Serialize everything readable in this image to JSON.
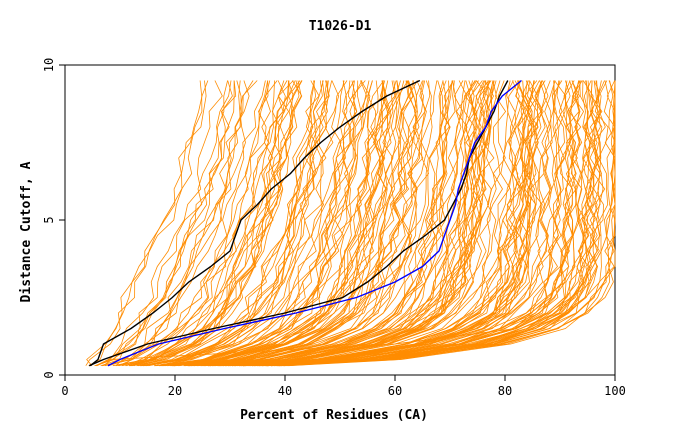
{
  "chart_data": {
    "type": "line",
    "title": "T1026-D1",
    "xlabel": "Percent of Residues (CA)",
    "ylabel": "Distance Cutoff, A",
    "xlim": [
      0,
      100
    ],
    "ylim": [
      0,
      10
    ],
    "x_ticks": [
      0,
      20,
      40,
      60,
      80,
      100
    ],
    "y_ticks": [
      0,
      5,
      10
    ],
    "grid": false,
    "legend": "none",
    "y_values": [
      0.3,
      0.5,
      1.0,
      1.5,
      2.0,
      2.5,
      3.0,
      3.5,
      4.0,
      4.5,
      5.0,
      5.5,
      6.0,
      6.5,
      7.0,
      7.5,
      8.0,
      8.5,
      9.0,
      9.5
    ],
    "series": [
      {
        "color": "#000000",
        "x": [
          4.6,
          6.0,
          7.0,
          12.0,
          16.0,
          19.5,
          22.5,
          26.5,
          30.0,
          31.0,
          32.0,
          35.0,
          37.5,
          41.0,
          43.5,
          46.5,
          50.0,
          54.0,
          58.5,
          64.5
        ]
      },
      {
        "color": "#000000",
        "x": [
          4.4,
          7.0,
          15.0,
          27.0,
          40.0,
          50.5,
          55.0,
          58.5,
          61.5,
          65.5,
          69.0,
          70.5,
          72.0,
          73.0,
          73.5,
          75.0,
          76.5,
          78.0,
          79.0,
          80.5
        ]
      },
      {
        "color": "#0000ff",
        "x": [
          7.8,
          10.0,
          17.0,
          29.0,
          42.0,
          53.0,
          60.0,
          65.0,
          68.0,
          69.0,
          70.0,
          71.0,
          71.5,
          72.5,
          73.5,
          74.5,
          76.5,
          77.5,
          79.5,
          83.0
        ]
      },
      {
        "color": "#ff8c00",
        "x": [
          7.0,
          8.5,
          60.0,
          82.0,
          88.0,
          92.0,
          94.5,
          96.0,
          97.5,
          98.5,
          99.0,
          99.3,
          99.5,
          99.6,
          99.7,
          99.8,
          99.9,
          100,
          100,
          100
        ]
      },
      {
        "color": "#ff8c00",
        "x": [
          40.0,
          45.0,
          78.0,
          88.0,
          93.0,
          96.0,
          98.0,
          99.0,
          99.5,
          99.8,
          100,
          100,
          100,
          100,
          100,
          100,
          100,
          100,
          100,
          100
        ]
      }
    ]
  }
}
